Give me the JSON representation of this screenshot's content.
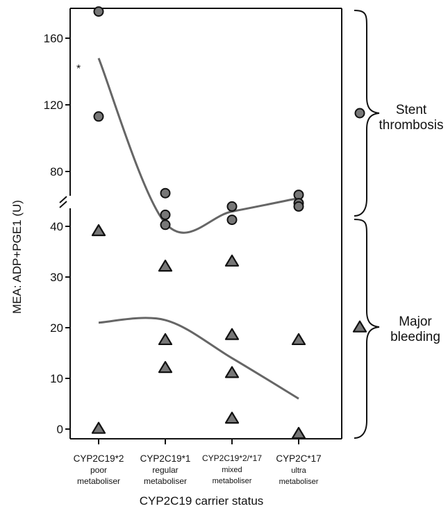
{
  "chart_data": {
    "type": "scatter",
    "xlabel": "CYP2C19 carrier status",
    "ylabel": "MEA: ADP+PGE1 (U)",
    "categories": [
      {
        "lines": [
          "CYP2C19*2",
          "poor",
          "metaboliser"
        ]
      },
      {
        "lines": [
          "CYP2C19*1",
          "regular",
          "metaboliser"
        ]
      },
      {
        "lines": [
          "CYP2C19*2/*17",
          "mixed",
          "metaboliser"
        ]
      },
      {
        "lines": [
          "CYP2C*17",
          "ultra",
          "metaboliser"
        ]
      }
    ],
    "upper_axis": {
      "ticks": [
        80,
        120,
        160
      ]
    },
    "lower_axis": {
      "ticks": [
        0,
        10,
        20,
        30,
        40
      ]
    },
    "series": [
      {
        "name": "Stent thrombosis",
        "marker": "circle",
        "points": [
          {
            "cat": 0,
            "y": 176
          },
          {
            "cat": 0,
            "y": 113
          },
          {
            "cat": 1,
            "y": 67
          },
          {
            "cat": 1,
            "y": 54
          },
          {
            "cat": 1,
            "y": 48
          },
          {
            "cat": 2,
            "y": 59
          },
          {
            "cat": 2,
            "y": 51
          },
          {
            "cat": 3,
            "y": 66
          },
          {
            "cat": 3,
            "y": 61
          },
          {
            "cat": 3,
            "y": 59
          }
        ],
        "trend": [
          148,
          49,
          56,
          64
        ]
      },
      {
        "name": "Major bleeding",
        "marker": "triangle",
        "points": [
          {
            "cat": 0,
            "y": 39
          },
          {
            "cat": 0,
            "y": 0
          },
          {
            "cat": 1,
            "y": 32
          },
          {
            "cat": 1,
            "y": 17.5
          },
          {
            "cat": 1,
            "y": 12
          },
          {
            "cat": 2,
            "y": 33
          },
          {
            "cat": 2,
            "y": 18.5
          },
          {
            "cat": 2,
            "y": 11
          },
          {
            "cat": 2,
            "y": 2
          },
          {
            "cat": 3,
            "y": 17.5
          },
          {
            "cat": 3,
            "y": -1
          }
        ],
        "trend": [
          21,
          21.5,
          14,
          6
        ]
      }
    ],
    "legend": [
      {
        "lines": [
          "Stent",
          "thrombosis"
        ],
        "marker": "circle"
      },
      {
        "lines": [
          "Major",
          "bleeding"
        ],
        "marker": "triangle"
      }
    ],
    "annotation": "*",
    "colors": {
      "marker_fill": "#777777",
      "marker_stroke": "#111111",
      "trend": "#666666",
      "axis": "#111111"
    }
  }
}
